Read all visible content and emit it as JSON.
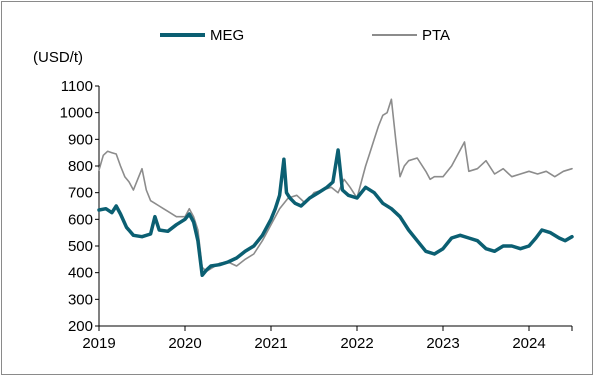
{
  "chart_data": {
    "type": "line",
    "ylabel": "(USD/t)",
    "ylim": [
      200,
      1100
    ],
    "yticks": [
      200,
      300,
      400,
      500,
      600,
      700,
      800,
      900,
      1000,
      1100
    ],
    "xlim": [
      2019.0,
      2024.5
    ],
    "xticks": [
      "2019",
      "2020",
      "2021",
      "2022",
      "2023",
      "2024"
    ],
    "grid": false,
    "legend_position": "top",
    "series": [
      {
        "name": "MEG",
        "color": "#0b5f72",
        "x": [
          2019.0,
          2019.08,
          2019.15,
          2019.2,
          2019.25,
          2019.32,
          2019.4,
          2019.5,
          2019.6,
          2019.65,
          2019.7,
          2019.8,
          2019.9,
          2020.0,
          2020.05,
          2020.1,
          2020.15,
          2020.2,
          2020.25,
          2020.3,
          2020.4,
          2020.5,
          2020.6,
          2020.7,
          2020.8,
          2020.9,
          2021.0,
          2021.05,
          2021.1,
          2021.15,
          2021.18,
          2021.22,
          2021.28,
          2021.35,
          2021.45,
          2021.55,
          2021.65,
          2021.72,
          2021.78,
          2021.83,
          2021.9,
          2022.0,
          2022.1,
          2022.2,
          2022.3,
          2022.4,
          2022.5,
          2022.6,
          2022.7,
          2022.8,
          2022.9,
          2023.0,
          2023.1,
          2023.2,
          2023.3,
          2023.4,
          2023.5,
          2023.6,
          2023.7,
          2023.8,
          2023.9,
          2024.0,
          2024.08,
          2024.15,
          2024.25,
          2024.35,
          2024.42,
          2024.5
        ],
        "values": [
          635,
          640,
          625,
          650,
          620,
          570,
          540,
          535,
          545,
          610,
          560,
          555,
          580,
          600,
          620,
          590,
          520,
          390,
          410,
          425,
          430,
          440,
          455,
          480,
          500,
          540,
          600,
          640,
          690,
          825,
          700,
          680,
          660,
          650,
          680,
          700,
          720,
          740,
          860,
          710,
          690,
          680,
          720,
          700,
          660,
          640,
          610,
          560,
          520,
          480,
          470,
          490,
          530,
          540,
          530,
          520,
          490,
          480,
          500,
          500,
          490,
          500,
          530,
          560,
          550,
          530,
          520,
          535
        ]
      },
      {
        "name": "PTA",
        "color": "#8c8c8c",
        "x": [
          2019.0,
          2019.05,
          2019.1,
          2019.15,
          2019.2,
          2019.25,
          2019.3,
          2019.35,
          2019.4,
          2019.45,
          2019.5,
          2019.55,
          2019.6,
          2019.65,
          2019.7,
          2019.75,
          2019.8,
          2019.9,
          2020.0,
          2020.05,
          2020.1,
          2020.15,
          2020.2,
          2020.25,
          2020.3,
          2020.4,
          2020.5,
          2020.6,
          2020.7,
          2020.8,
          2020.9,
          2021.0,
          2021.1,
          2021.2,
          2021.3,
          2021.4,
          2021.5,
          2021.6,
          2021.7,
          2021.78,
          2021.85,
          2021.92,
          2022.0,
          2022.05,
          2022.1,
          2022.15,
          2022.2,
          2022.25,
          2022.3,
          2022.35,
          2022.4,
          2022.45,
          2022.5,
          2022.55,
          2022.6,
          2022.7,
          2022.8,
          2022.85,
          2022.9,
          2023.0,
          2023.1,
          2023.2,
          2023.25,
          2023.3,
          2023.4,
          2023.5,
          2023.6,
          2023.7,
          2023.8,
          2023.9,
          2024.0,
          2024.1,
          2024.2,
          2024.3,
          2024.4,
          2024.5
        ],
        "values": [
          785,
          840,
          855,
          850,
          845,
          800,
          760,
          740,
          710,
          750,
          790,
          710,
          670,
          660,
          650,
          640,
          630,
          610,
          610,
          640,
          610,
          560,
          420,
          405,
          415,
          435,
          440,
          425,
          450,
          470,
          520,
          580,
          640,
          680,
          690,
          660,
          700,
          710,
          720,
          700,
          750,
          720,
          680,
          740,
          800,
          850,
          900,
          950,
          990,
          1000,
          1050,
          900,
          760,
          800,
          820,
          830,
          780,
          750,
          760,
          760,
          800,
          860,
          890,
          780,
          790,
          820,
          770,
          790,
          760,
          770,
          780,
          770,
          780,
          760,
          780,
          790
        ]
      }
    ]
  }
}
